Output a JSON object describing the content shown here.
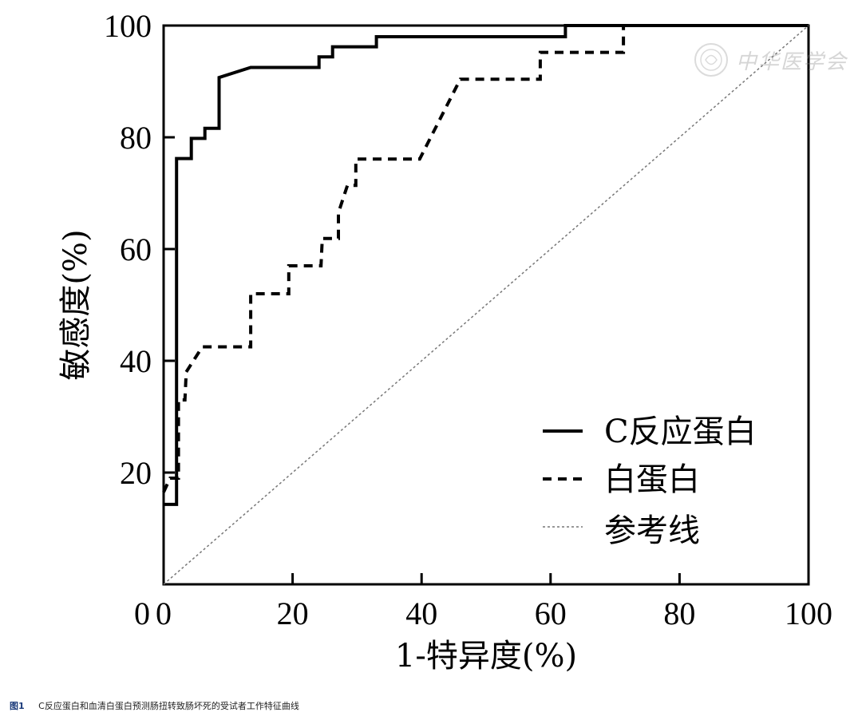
{
  "chart_data": {
    "type": "line",
    "title": "",
    "xlabel": "1-特异度(%)",
    "ylabel": "敏感度(%)",
    "xlim": [
      0,
      100
    ],
    "ylim": [
      0,
      100
    ],
    "x_ticks": [
      "0",
      "20",
      "40",
      "60",
      "80",
      "100"
    ],
    "y_ticks": [
      "20",
      "40",
      "60",
      "80",
      "100"
    ],
    "grid": false,
    "legend_position": "bottom-right",
    "series": [
      {
        "name": "C反应蛋白",
        "style": "solid",
        "color": "#000000",
        "points": [
          [
            0,
            14.3
          ],
          [
            2,
            14.3
          ],
          [
            2,
            76.2
          ],
          [
            4.3,
            76.2
          ],
          [
            4.3,
            79.8
          ],
          [
            6.4,
            79.8
          ],
          [
            6.4,
            81.6
          ],
          [
            8.6,
            81.6
          ],
          [
            8.6,
            90.7
          ],
          [
            13.5,
            92.5
          ],
          [
            24.1,
            92.5
          ],
          [
            24.1,
            94.4
          ],
          [
            26.2,
            94.4
          ],
          [
            26.2,
            96.2
          ],
          [
            33,
            96.2
          ],
          [
            33,
            98.0
          ],
          [
            62.3,
            98.0
          ],
          [
            62.3,
            100
          ],
          [
            100,
            100
          ]
        ]
      },
      {
        "name": "白蛋白",
        "style": "dashed",
        "color": "#000000",
        "points": [
          [
            0,
            16.5
          ],
          [
            1,
            19
          ],
          [
            2.3,
            19
          ],
          [
            2.3,
            33
          ],
          [
            3.3,
            33
          ],
          [
            3.5,
            38
          ],
          [
            6,
            42.5
          ],
          [
            13.5,
            42.5
          ],
          [
            13.5,
            52
          ],
          [
            19.4,
            52
          ],
          [
            19.4,
            57
          ],
          [
            24.4,
            57
          ],
          [
            24.6,
            61.9
          ],
          [
            27.1,
            61.9
          ],
          [
            27.1,
            66.5
          ],
          [
            28.5,
            71.4
          ],
          [
            29.8,
            71.4
          ],
          [
            29.8,
            76.1
          ],
          [
            39.7,
            76.1
          ],
          [
            46,
            90.4
          ],
          [
            58.4,
            90.4
          ],
          [
            58.4,
            95.2
          ],
          [
            71.3,
            95.2
          ],
          [
            71.3,
            100
          ],
          [
            100,
            100
          ]
        ]
      },
      {
        "name": "参考线",
        "style": "dotted",
        "color": "#777777",
        "points": [
          [
            0,
            0
          ],
          [
            100,
            100
          ]
        ]
      }
    ]
  },
  "caption": {
    "figure_label": "图1",
    "text": "C反应蛋白和血清白蛋白预测肠扭转致肠坏死的受试者工作特征曲线"
  },
  "watermark": {
    "text": "中华医学会"
  }
}
